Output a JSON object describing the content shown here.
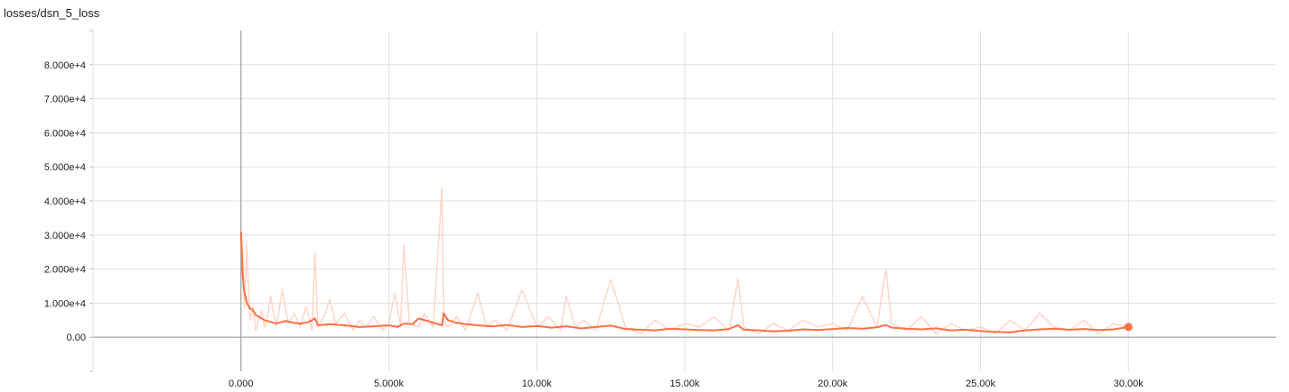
{
  "chart_data": {
    "type": "line",
    "title": "losses/dsn_5_loss",
    "xlabel": "",
    "ylabel": "",
    "xlim": [
      -5000,
      35000
    ],
    "ylim": [
      -10000,
      90000
    ],
    "grid": true,
    "x_ticks": [
      0,
      5000,
      10000,
      15000,
      20000,
      25000,
      30000
    ],
    "x_tick_labels": [
      "0.000",
      "5.000k",
      "10.00k",
      "15.00k",
      "20.00k",
      "25.00k",
      "30.00k"
    ],
    "y_ticks": [
      0,
      10000,
      20000,
      30000,
      40000,
      50000,
      60000,
      70000,
      80000
    ],
    "y_tick_labels": [
      "0.00",
      "1.000e+4",
      "2.000e+4",
      "3.000e+4",
      "4.000e+4",
      "5.000e+4",
      "6.000e+4",
      "7.000e+4",
      "8.000e+4"
    ],
    "colors": {
      "smoothed": "#ff7043",
      "raw": "#ffccbc",
      "grid": "#e0e0e0",
      "zero_axis": "#9e9e9e"
    },
    "series": [
      {
        "role": "raw",
        "x": [
          0,
          60,
          120,
          200,
          300,
          400,
          500,
          700,
          800,
          900,
          1000,
          1200,
          1400,
          1600,
          1800,
          2000,
          2200,
          2400,
          2500,
          2600,
          2800,
          3000,
          3200,
          3500,
          3800,
          4000,
          4200,
          4500,
          4800,
          5000,
          5200,
          5400,
          5500,
          5700,
          6000,
          6200,
          6500,
          6800,
          6850,
          7000,
          7300,
          7600,
          8000,
          8300,
          8600,
          9000,
          9500,
          10000,
          10400,
          10800,
          11000,
          11300,
          11600,
          12000,
          12500,
          13000,
          13500,
          14000,
          14500,
          15000,
          15500,
          16000,
          16500,
          16800,
          17000,
          17500,
          18000,
          18500,
          19000,
          19500,
          20000,
          20500,
          21000,
          21500,
          21800,
          22000,
          22500,
          23000,
          23500,
          24000,
          24500,
          25000,
          25500,
          26000,
          26500,
          27000,
          27500,
          28000,
          28500,
          29000,
          29500,
          30000
        ],
        "y": [
          31000,
          24000,
          9000,
          27000,
          5000,
          9000,
          2000,
          8000,
          3000,
          6000,
          12000,
          3000,
          14000,
          4000,
          7000,
          3000,
          9000,
          2000,
          25000,
          3000,
          6000,
          11000,
          4000,
          7000,
          2000,
          5000,
          3000,
          6000,
          2000,
          4000,
          13000,
          3000,
          27000,
          4000,
          3000,
          7000,
          3000,
          44000,
          5000,
          3000,
          6000,
          2000,
          13000,
          3000,
          5000,
          2000,
          14000,
          3000,
          6000,
          2000,
          12000,
          3000,
          5000,
          2000,
          17000,
          3000,
          1000,
          5000,
          2000,
          4000,
          3000,
          6000,
          2000,
          17000,
          3000,
          1000,
          4000,
          2000,
          5000,
          3000,
          4000,
          2000,
          12000,
          3000,
          20000,
          4000,
          2000,
          6000,
          1000,
          4000,
          2000,
          3000,
          1000,
          5000,
          2000,
          7000,
          3000,
          2000,
          5000,
          1000,
          4000,
          3000
        ]
      },
      {
        "role": "smoothed",
        "x": [
          0,
          60,
          100,
          150,
          200,
          300,
          400,
          500,
          600,
          800,
          1000,
          1200,
          1500,
          1800,
          2000,
          2300,
          2500,
          2600,
          3000,
          3500,
          4000,
          4500,
          5000,
          5300,
          5500,
          5800,
          6000,
          6300,
          6600,
          6800,
          6850,
          7000,
          7300,
          7600,
          8000,
          8500,
          9000,
          9500,
          10000,
          10500,
          11000,
          11500,
          12000,
          12500,
          13000,
          13500,
          14000,
          14500,
          15000,
          15500,
          16000,
          16500,
          16800,
          17000,
          17500,
          18000,
          18500,
          19000,
          19500,
          20000,
          20500,
          21000,
          21500,
          21800,
          22000,
          22500,
          23000,
          23500,
          24000,
          24500,
          25000,
          25500,
          26000,
          26500,
          27000,
          27500,
          28000,
          28500,
          29000,
          29500,
          30000
        ],
        "y": [
          31000,
          18000,
          14000,
          12000,
          10000,
          8500,
          8000,
          6500,
          6000,
          5000,
          4500,
          4000,
          4800,
          4200,
          4000,
          4500,
          5500,
          3500,
          3800,
          3500,
          3000,
          3200,
          3500,
          3000,
          4000,
          3800,
          5500,
          4800,
          4000,
          3500,
          7000,
          5000,
          4200,
          3800,
          3500,
          3200,
          3600,
          3000,
          3300,
          2800,
          3200,
          2600,
          3000,
          3400,
          2400,
          2200,
          2000,
          2500,
          2300,
          2100,
          2000,
          2400,
          3500,
          2200,
          2000,
          1700,
          1900,
          2300,
          2100,
          2400,
          2700,
          2500,
          2900,
          3600,
          2800,
          2500,
          2300,
          2600,
          2000,
          2200,
          1800,
          1600,
          1400,
          2000,
          2300,
          2500,
          2200,
          2400,
          2100,
          2300,
          3000
        ]
      }
    ]
  }
}
